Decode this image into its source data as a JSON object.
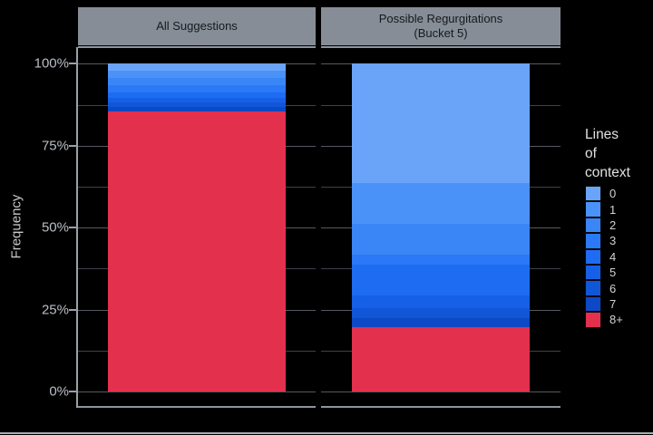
{
  "figure": {
    "ylabel": "Frequency",
    "y_axis": {
      "tick_labels": [
        "0%",
        "25%",
        "50%",
        "75%",
        "100%"
      ],
      "tick_pcts": [
        0,
        25,
        50,
        75,
        100
      ]
    },
    "panels": [
      {
        "id": "all-suggestions",
        "title_lines": [
          "All Suggestions"
        ]
      },
      {
        "id": "bucket-5",
        "title_lines": [
          "Possible Regurgitations",
          "(Bucket 5)"
        ]
      }
    ],
    "legend": {
      "title_lines": [
        "Lines",
        "of",
        "context"
      ]
    },
    "colors": {
      "background": "#000000",
      "strip_background": "#868d97",
      "strip_text": "#17191d",
      "axis_line": "#9aa0a8",
      "grid_major": "#555a61",
      "grid_minor": "#3e434a",
      "tick_text": "#b9bec6",
      "axis_title_text": "#c9c9c9",
      "legend_title_text": "#e0e0e0",
      "legend_label_text": "#d2d2d2",
      "bottom_border": "#a7acb3"
    }
  },
  "chart_data": {
    "type": "bar",
    "stacked": true,
    "orientation": "vertical",
    "unit": "percent",
    "title": "",
    "xlabel": "",
    "ylabel": "Frequency",
    "ylim": [
      0,
      100
    ],
    "grid": "horizontal lines every 12.5%, major every 25%",
    "legend_title": "Lines of context",
    "legend_position": "right",
    "categories": [
      "All Suggestions",
      "Possible Regurgitations (Bucket 5)"
    ],
    "series": [
      {
        "name": "0",
        "color": "#6aa4f9",
        "values": [
          2.2,
          36.4
        ]
      },
      {
        "name": "1",
        "color": "#4b92f8",
        "values": [
          2.2,
          12.4
        ]
      },
      {
        "name": "2",
        "color": "#3a86f7",
        "values": [
          2.2,
          9.4
        ]
      },
      {
        "name": "3",
        "color": "#2b79f6",
        "values": [
          2.1,
          3.1
        ]
      },
      {
        "name": "4",
        "color": "#1d6cf2",
        "values": [
          1.7,
          9.4
        ]
      },
      {
        "name": "5",
        "color": "#1660e7",
        "values": [
          1.5,
          3.9
        ]
      },
      {
        "name": "6",
        "color": "#1256d8",
        "values": [
          1.4,
          3.0
        ]
      },
      {
        "name": "7",
        "color": "#0d49c4",
        "values": [
          1.2,
          2.8
        ]
      },
      {
        "name": "8+",
        "color": "#e3304d",
        "values": [
          85.5,
          19.6
        ]
      }
    ]
  }
}
